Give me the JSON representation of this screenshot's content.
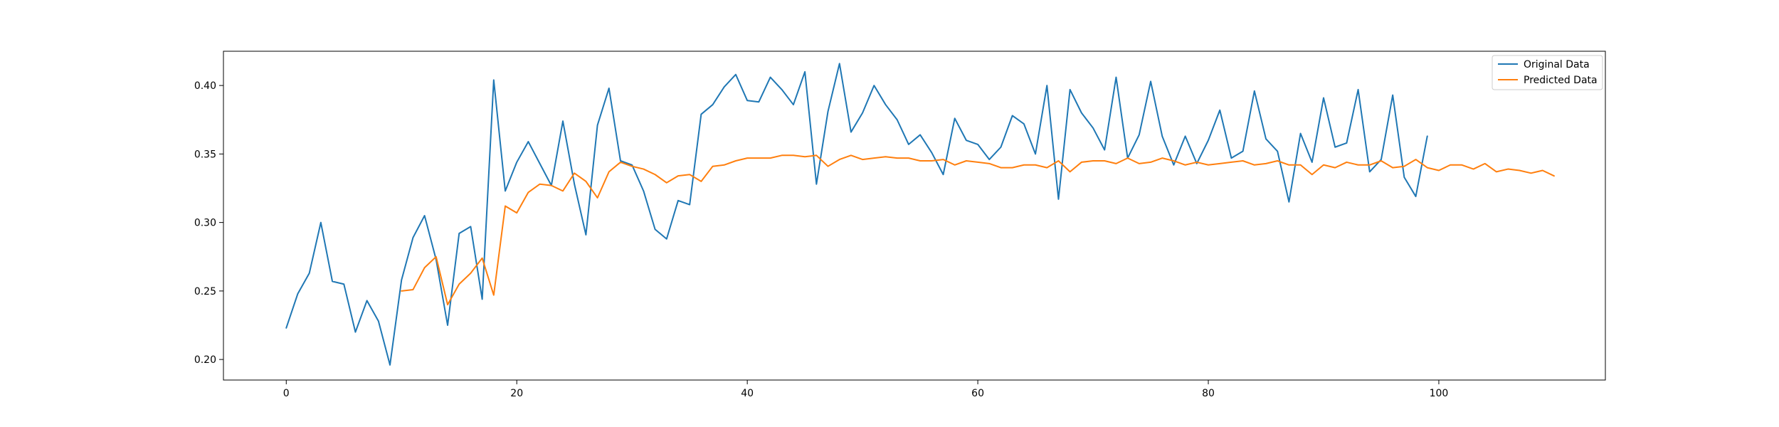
{
  "chart_data": {
    "type": "line",
    "title": "",
    "xlabel": "",
    "ylabel": "",
    "xlim": [
      -5.45,
      114.45
    ],
    "ylim": [
      0.185,
      0.425
    ],
    "x_ticks": [
      0,
      20,
      40,
      60,
      80,
      100
    ],
    "y_ticks": [
      0.2,
      0.25,
      0.3,
      0.35,
      0.4
    ],
    "grid": false,
    "legend_position": "top-right",
    "series": [
      {
        "name": "Original Data",
        "color": "#1f77b4",
        "x_start": 0,
        "values": [
          0.223,
          0.248,
          0.263,
          0.3,
          0.257,
          0.255,
          0.22,
          0.243,
          0.228,
          0.196,
          0.258,
          0.289,
          0.305,
          0.273,
          0.225,
          0.292,
          0.297,
          0.244,
          0.404,
          0.323,
          0.344,
          0.359,
          0.343,
          0.327,
          0.374,
          0.328,
          0.291,
          0.371,
          0.398,
          0.345,
          0.342,
          0.323,
          0.295,
          0.288,
          0.316,
          0.313,
          0.379,
          0.386,
          0.399,
          0.408,
          0.389,
          0.388,
          0.406,
          0.397,
          0.386,
          0.41,
          0.328,
          0.381,
          0.416,
          0.366,
          0.38,
          0.4,
          0.386,
          0.375,
          0.357,
          0.364,
          0.351,
          0.335,
          0.376,
          0.36,
          0.357,
          0.346,
          0.355,
          0.378,
          0.372,
          0.35,
          0.4,
          0.317,
          0.397,
          0.38,
          0.369,
          0.353,
          0.406,
          0.347,
          0.364,
          0.403,
          0.363,
          0.342,
          0.363,
          0.343,
          0.36,
          0.382,
          0.347,
          0.352,
          0.396,
          0.361,
          0.352,
          0.315,
          0.365,
          0.344,
          0.391,
          0.355,
          0.358,
          0.397,
          0.337,
          0.346,
          0.393,
          0.333,
          0.319,
          0.363
        ]
      },
      {
        "name": "Predicted Data",
        "color": "#ff7f0e",
        "x_start": 10,
        "values": [
          0.25,
          0.251,
          0.267,
          0.275,
          0.24,
          0.255,
          0.263,
          0.274,
          0.247,
          0.312,
          0.307,
          0.322,
          0.328,
          0.327,
          0.323,
          0.336,
          0.33,
          0.318,
          0.337,
          0.344,
          0.341,
          0.339,
          0.335,
          0.329,
          0.334,
          0.335,
          0.33,
          0.341,
          0.342,
          0.345,
          0.347,
          0.347,
          0.347,
          0.349,
          0.349,
          0.348,
          0.349,
          0.341,
          0.346,
          0.349,
          0.346,
          0.347,
          0.348,
          0.347,
          0.347,
          0.345,
          0.345,
          0.346,
          0.342,
          0.345,
          0.344,
          0.343,
          0.34,
          0.34,
          0.342,
          0.342,
          0.34,
          0.345,
          0.337,
          0.344,
          0.345,
          0.345,
          0.343,
          0.347,
          0.343,
          0.344,
          0.347,
          0.345,
          0.342,
          0.344,
          0.342,
          0.343,
          0.344,
          0.345,
          0.342,
          0.343,
          0.345,
          0.342,
          0.342,
          0.335,
          0.342,
          0.34,
          0.344,
          0.342,
          0.342,
          0.345,
          0.34,
          0.341,
          0.346,
          0.34,
          0.338,
          0.342,
          0.342,
          0.339,
          0.343,
          0.337,
          0.339,
          0.338,
          0.336,
          0.338,
          0.334
        ]
      }
    ]
  }
}
